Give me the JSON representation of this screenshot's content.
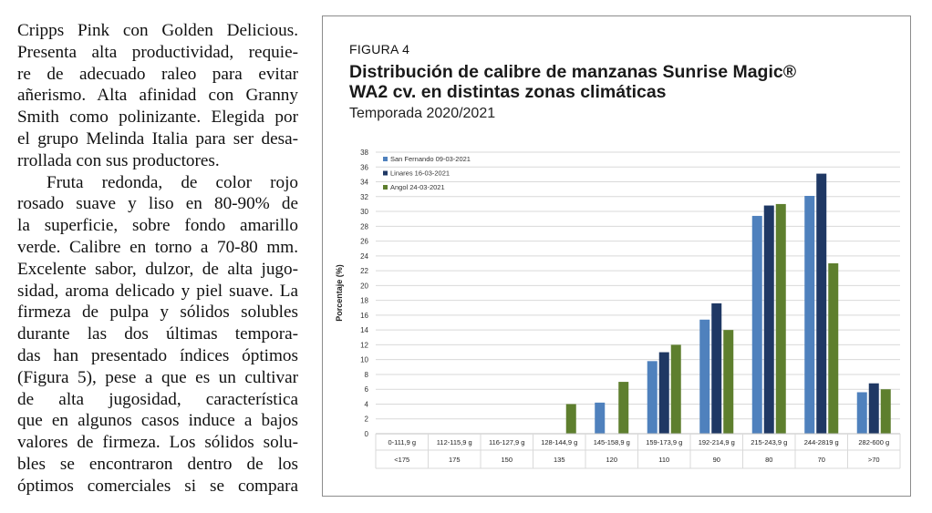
{
  "body_text": [
    "Cripps Pink con Golden Delicious.",
    "Presenta alta productividad, requie-",
    "re de adecuado raleo para evitar",
    "añerismo. Alta afinidad con Granny",
    "Smith como polinizante. Elegida por",
    "el grupo Melinda Italia para ser desa-",
    "rrollada con sus productores.",
    "Fruta redonda, de color rojo",
    "rosado suave y liso en 80-90% de",
    "la superficie, sobre fondo amarillo",
    "verde. Calibre en torno a 70-80 mm.",
    "Excelente sabor, dulzor, de alta jugo-",
    "sidad, aroma delicado y piel suave. La",
    "firmeza de pulpa y sólidos solubles",
    "durante las dos últimas tempora-",
    "das han presentado índices óptimos",
    "(Figura 5), pese a que es un cultivar",
    "de alta jugosidad, característica",
    "que en algunos casos induce a bajos",
    "valores de firmeza. Los sólidos solu-",
    "bles se encontraron dentro de los",
    "óptimos comerciales si se compara"
  ],
  "figure": {
    "label": "FIGURA 4",
    "title_line1": "Distribución de calibre de manzanas Sunrise Magic®",
    "title_line2": "WA2 cv. en distintas zonas climáticas",
    "subtitle": "Temporada 2020/2021"
  },
  "chart_data": {
    "type": "bar",
    "ylabel": "Porcentaje (%)",
    "ylim": [
      0,
      38
    ],
    "yticks": [
      0,
      2,
      4,
      6,
      8,
      10,
      12,
      14,
      16,
      18,
      20,
      22,
      24,
      26,
      28,
      30,
      32,
      34,
      36,
      38
    ],
    "grid": true,
    "legend_position": "top-left",
    "categories": [
      "0-111,9 g",
      "112-115,9 g",
      "116-127,9 g",
      "128-144,9 g",
      "145-158,9 g",
      "159-173,9 g",
      "192-214,9 g",
      "215-243,9 g",
      "244-2819 g",
      "282-600 g"
    ],
    "categories_row2": [
      "<175",
      "175",
      "150",
      "135",
      "120",
      "110",
      "90",
      "80",
      "70",
      ">70"
    ],
    "series": [
      {
        "name": "San Fernando 09-03-2021",
        "color": "#4f81bd",
        "values": [
          0,
          0,
          0,
          0,
          4.2,
          9.8,
          15.4,
          29.4,
          32.1,
          5.6
        ]
      },
      {
        "name": "Linares 16-03-2021",
        "color": "#1f3864",
        "values": [
          0,
          0,
          0,
          0,
          0,
          11.0,
          17.6,
          30.8,
          35.1,
          6.8
        ]
      },
      {
        "name": "Angol 24-03-2021",
        "color": "#5e7f2e",
        "values": [
          0,
          0,
          0,
          4.0,
          7.0,
          12.0,
          14.0,
          31.0,
          23.0,
          6.0
        ]
      }
    ]
  }
}
